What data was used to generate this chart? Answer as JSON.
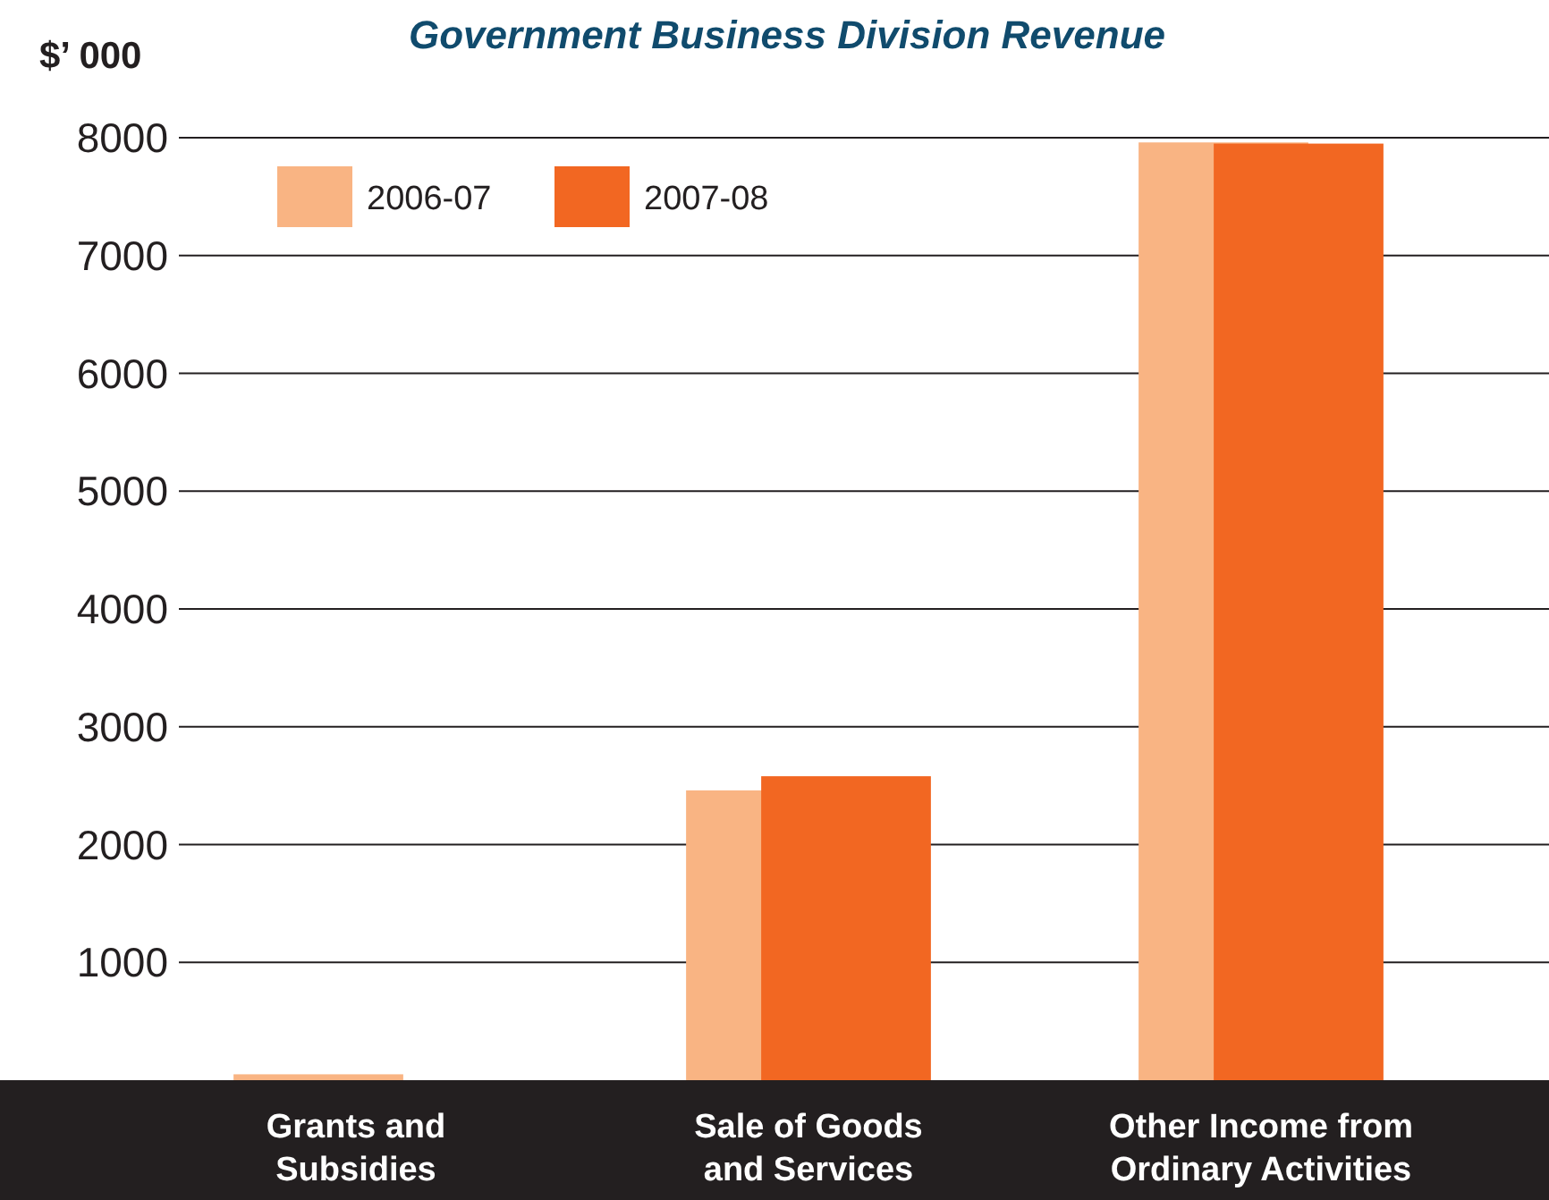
{
  "chart_data": {
    "type": "bar",
    "title": "Government Business Division Revenue",
    "ylabel": "$’ 000",
    "categories": [
      "Grants and Subsidies",
      "Sale of Goods and Services",
      "Other Income from Ordinary Activities"
    ],
    "series": [
      {
        "name": "2006-07",
        "color": "#f9b483",
        "values": [
          50,
          2460,
          7960
        ]
      },
      {
        "name": "2007-08",
        "color": "#f26722",
        "values": [
          0,
          2580,
          7950
        ]
      }
    ],
    "ylim": [
      0,
      8000
    ],
    "yticks": [
      1000,
      2000,
      3000,
      4000,
      5000,
      6000,
      7000,
      8000
    ],
    "grid": "y",
    "legend": "top left"
  }
}
